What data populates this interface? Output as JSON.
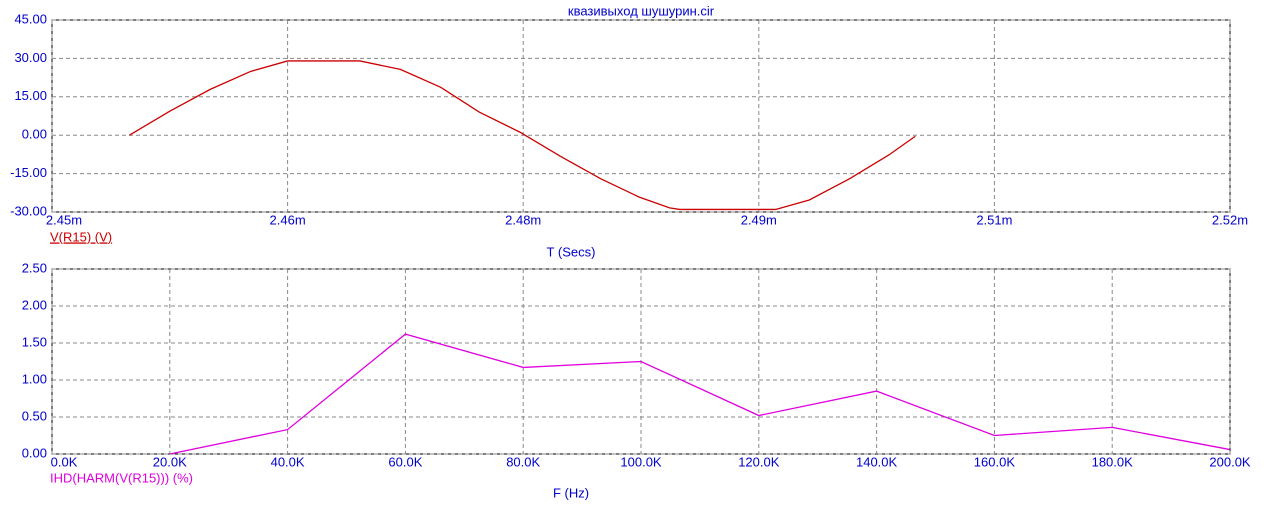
{
  "chart_data": [
    {
      "type": "line",
      "title": "квазивыход шушурин.cir",
      "x_label": "T (Secs)",
      "x": [
        0.0024546,
        0.002457,
        0.0024594,
        0.0024618,
        0.002464,
        0.0024683,
        0.0024707,
        0.0024731,
        0.0024754,
        0.0024778,
        0.0024802,
        0.0024826,
        0.0024849,
        0.0024867,
        0.0024873,
        0.002493,
        0.002495,
        0.0024974,
        0.0024998,
        0.0025013
      ],
      "series": [
        {
          "name": "V(R15) (V)",
          "color": "#cc0000",
          "values": [
            0,
            9.4,
            17.9,
            24.9,
            29,
            29,
            25.7,
            18.7,
            9,
            1.2,
            -8.2,
            -17,
            -24.2,
            -28.4,
            -29,
            -29,
            -25.3,
            -17,
            -7.4,
            -0.4
          ]
        }
      ],
      "xlim": [
        0.00245,
        0.00252
      ],
      "xticks": [
        {
          "value": 0.00245,
          "label": "2.45m"
        },
        {
          "value": 0.002464,
          "label": "2.46m"
        },
        {
          "value": 0.002478,
          "label": "2.48m"
        },
        {
          "value": 0.002492,
          "label": "2.49m"
        },
        {
          "value": 0.002506,
          "label": "2.51m"
        },
        {
          "value": 0.00252,
          "label": "2.52m"
        }
      ],
      "ylim": [
        -30,
        45
      ],
      "yticks": [
        {
          "value": 45,
          "label": "45.00"
        },
        {
          "value": 30,
          "label": "30.00"
        },
        {
          "value": 15,
          "label": "15.00"
        },
        {
          "value": 0,
          "label": "0.00"
        },
        {
          "value": -15,
          "label": "-15.00"
        },
        {
          "value": -30,
          "label": "-30.00"
        }
      ],
      "grid": true
    },
    {
      "type": "line",
      "x_label": "F (Hz)",
      "x": [
        20000,
        40000,
        60000,
        80000,
        100000,
        120000,
        140000,
        160000,
        180000,
        200000
      ],
      "series": [
        {
          "name": "IHD(HARM(V(R15))) (%)",
          "color": "#e000e0",
          "values": [
            0,
            0.33,
            1.62,
            1.17,
            1.25,
            0.52,
            0.85,
            0.25,
            0.36,
            0.06
          ]
        }
      ],
      "xlim": [
        0,
        200000
      ],
      "xticks": [
        {
          "value": 0,
          "label": "0.0K"
        },
        {
          "value": 20000,
          "label": "20.0K"
        },
        {
          "value": 40000,
          "label": "40.0K"
        },
        {
          "value": 60000,
          "label": "60.0K"
        },
        {
          "value": 80000,
          "label": "80.0K"
        },
        {
          "value": 100000,
          "label": "100.0K"
        },
        {
          "value": 120000,
          "label": "120.0K"
        },
        {
          "value": 140000,
          "label": "140.0K"
        },
        {
          "value": 160000,
          "label": "160.0K"
        },
        {
          "value": 180000,
          "label": "180.0K"
        },
        {
          "value": 200000,
          "label": "200.0K"
        }
      ],
      "ylim": [
        0,
        2.5
      ],
      "yticks": [
        {
          "value": 0,
          "label": "0.00"
        },
        {
          "value": 0.5,
          "label": "0.50"
        },
        {
          "value": 1,
          "label": "1.00"
        },
        {
          "value": 1.5,
          "label": "1.50"
        },
        {
          "value": 2,
          "label": "2.00"
        },
        {
          "value": 2.5,
          "label": "2.50"
        }
      ],
      "grid": true
    }
  ]
}
